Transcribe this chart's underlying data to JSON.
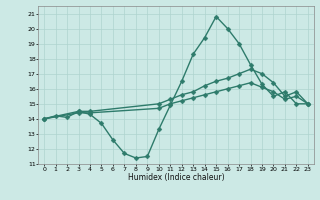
{
  "xlabel": "Humidex (Indice chaleur)",
  "xlim": [
    -0.5,
    23.5
  ],
  "ylim": [
    11,
    21.5
  ],
  "yticks": [
    11,
    12,
    13,
    14,
    15,
    16,
    17,
    18,
    19,
    20,
    21
  ],
  "xticks": [
    0,
    1,
    2,
    3,
    4,
    5,
    6,
    7,
    8,
    9,
    10,
    11,
    12,
    13,
    14,
    15,
    16,
    17,
    18,
    19,
    20,
    21,
    22,
    23
  ],
  "bg_color": "#cce9e5",
  "line_color": "#2e7b6b",
  "grid_color": "#afd4cf",
  "lines": [
    {
      "x": [
        0,
        1,
        2,
        3,
        4,
        5,
        6,
        7,
        8,
        9,
        10,
        11,
        12,
        13,
        14,
        15,
        16,
        17,
        18,
        19,
        20,
        21,
        22,
        23
      ],
      "y": [
        14.0,
        14.2,
        14.1,
        14.5,
        14.3,
        13.7,
        12.6,
        11.7,
        11.4,
        11.5,
        13.3,
        14.9,
        16.5,
        18.3,
        19.4,
        20.8,
        20.0,
        19.0,
        17.6,
        16.3,
        15.5,
        15.8,
        15.0,
        15.0
      ],
      "markersize": 2.5,
      "linewidth": 1.0
    },
    {
      "x": [
        0,
        3,
        4,
        10,
        11,
        12,
        13,
        14,
        15,
        16,
        17,
        18,
        19,
        20,
        21,
        22,
        23
      ],
      "y": [
        14.0,
        14.5,
        14.5,
        15.0,
        15.3,
        15.6,
        15.8,
        16.2,
        16.5,
        16.7,
        17.0,
        17.3,
        17.0,
        16.4,
        15.5,
        15.8,
        15.0
      ],
      "markersize": 2.5,
      "linewidth": 1.0
    },
    {
      "x": [
        0,
        3,
        4,
        10,
        11,
        12,
        13,
        14,
        15,
        16,
        17,
        18,
        19,
        20,
        21,
        22,
        23
      ],
      "y": [
        14.0,
        14.4,
        14.4,
        14.7,
        15.0,
        15.2,
        15.4,
        15.6,
        15.8,
        16.0,
        16.2,
        16.4,
        16.1,
        15.8,
        15.3,
        15.5,
        15.0
      ],
      "markersize": 2.5,
      "linewidth": 1.0
    }
  ]
}
